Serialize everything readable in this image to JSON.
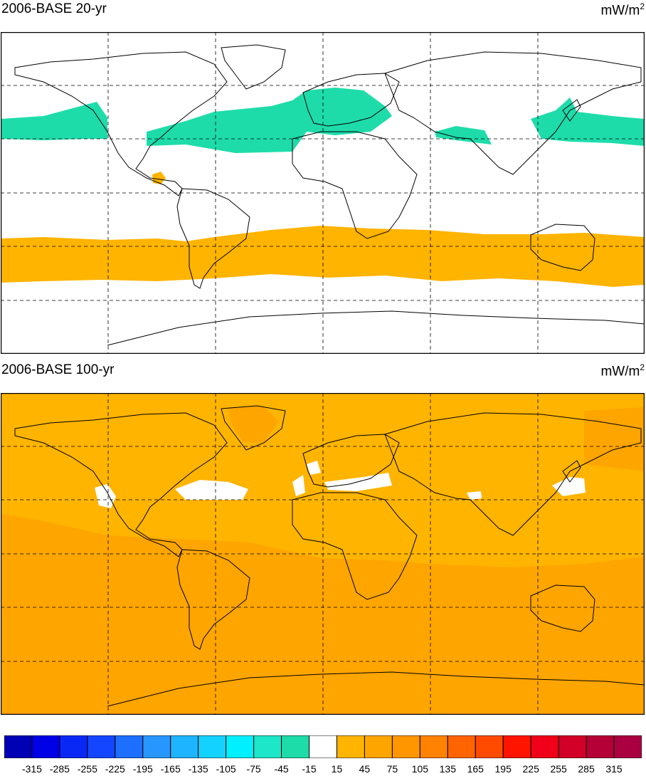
{
  "panels": [
    {
      "title": "2006-BASE 20-yr",
      "units_base": "mW/m",
      "units_exp": "2"
    },
    {
      "title": "2006-BASE 100-yr",
      "units_base": "mW/m",
      "units_exp": "2"
    }
  ],
  "colorbar": {
    "labels": [
      "-315",
      "-285",
      "-255",
      "-225",
      "-195",
      "-165",
      "-135",
      "-105",
      "-75",
      "-45",
      "-15",
      "15",
      "45",
      "75",
      "105",
      "135",
      "165",
      "195",
      "225",
      "255",
      "285",
      "315"
    ],
    "colors": [
      "#0000b4",
      "#0000e6",
      "#0a28f5",
      "#1446ff",
      "#1e6eff",
      "#2896ff",
      "#1eb4ff",
      "#14d2ff",
      "#00f0ff",
      "#1ee6c8",
      "#1edcaa",
      "#ffffff",
      "#ffb400",
      "#ffa500",
      "#ff9600",
      "#ff8200",
      "#ff6400",
      "#ff4b00",
      "#ff1400",
      "#f00019",
      "#d20028",
      "#b40037",
      "#aa0041"
    ]
  },
  "legend_colors": {
    "positive_fill": "#ffb400",
    "negative_fill": "#1edcaa",
    "background_100yr": "#ffa500"
  }
}
